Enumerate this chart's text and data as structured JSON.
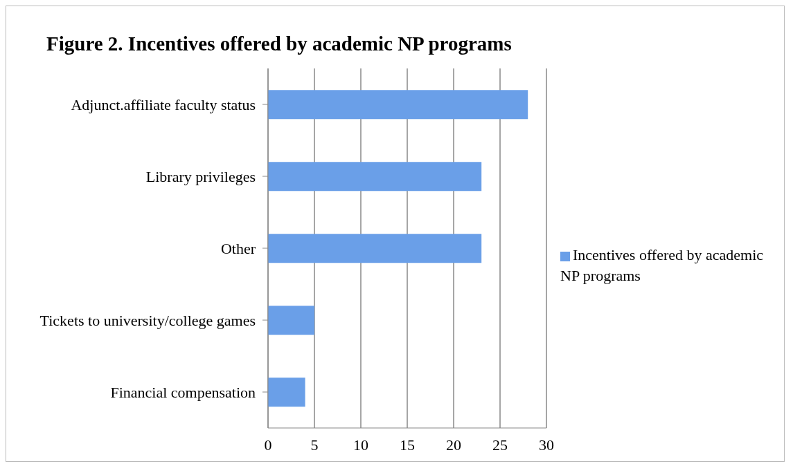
{
  "chart_data": {
    "type": "bar",
    "orientation": "horizontal",
    "title": "Figure 2. Incentives offered by academic NP programs",
    "categories": [
      "Adjunct.affiliate faculty status",
      "Library privileges",
      "Other",
      "Tickets to university/college games",
      "Financial compensation"
    ],
    "series": [
      {
        "name": "Incentives offered by academic NP programs",
        "color": "#6a9fe8",
        "values": [
          28,
          23,
          23,
          5,
          4
        ]
      }
    ],
    "xlim": [
      0,
      30
    ],
    "xticks": [
      0,
      5,
      10,
      15,
      20,
      25,
      30
    ],
    "grid": "x",
    "legend": "right"
  }
}
